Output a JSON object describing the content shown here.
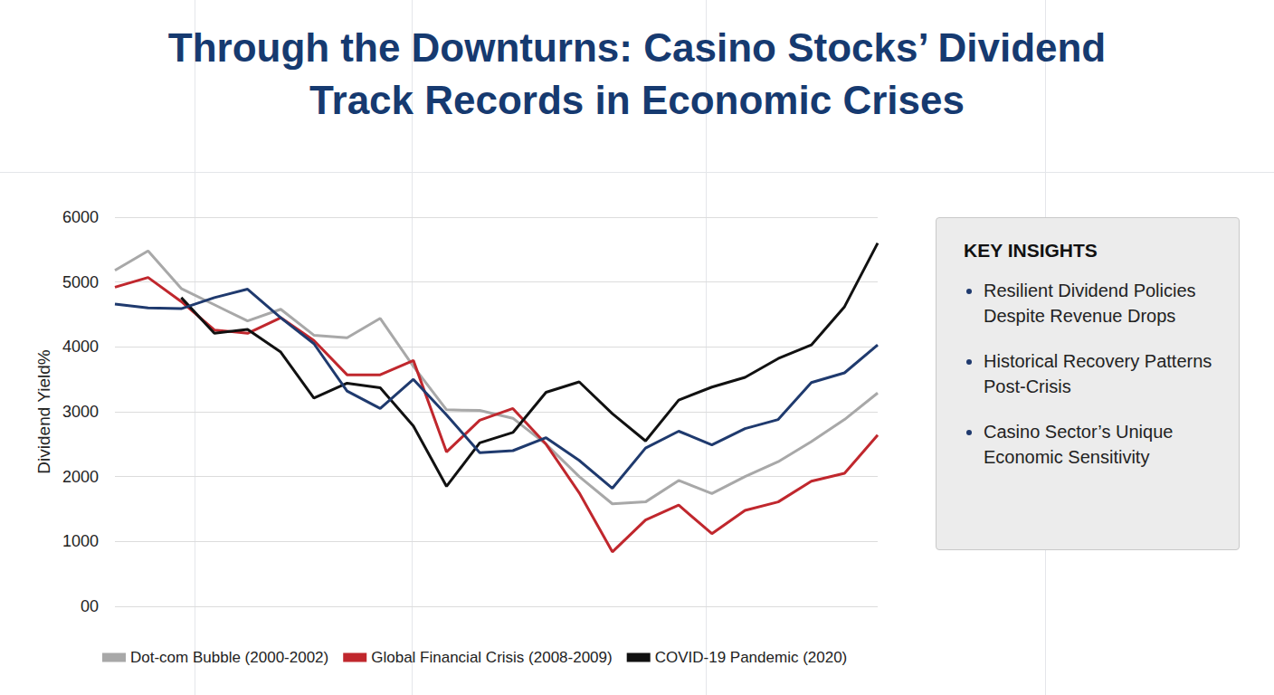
{
  "chart_data": {
    "type": "line",
    "title": "Through the Downturns: Casino Stocks’ Dividend Track Records in Economic Crises",
    "y_label": "Dividend Yield%",
    "categories": [
      null,
      null,
      null,
      null,
      null,
      null,
      null,
      null,
      null,
      null,
      null,
      null,
      null,
      null,
      null,
      null,
      null,
      null,
      null,
      null,
      null,
      null,
      null,
      null
    ],
    "series": [
      {
        "name": "Dot-com Bubble (2000-2002)",
        "color": "#a8a8a8",
        "values": [
          5180,
          5480,
          4900,
          4650,
          4400,
          4580,
          4180,
          4140,
          4440,
          3700,
          3030,
          3020,
          2900,
          2500,
          2000,
          1580,
          1610,
          1940,
          1740,
          2000,
          2230,
          2540,
          2880,
          3290
        ]
      },
      {
        "name": "Global Financial Crisis (2008-2009)",
        "color": "#c0272d",
        "values": [
          4920,
          5070,
          4700,
          4260,
          4210,
          4450,
          4100,
          3570,
          3570,
          3790,
          2380,
          2870,
          3050,
          2500,
          1750,
          840,
          1330,
          1560,
          1120,
          1480,
          1610,
          1930,
          2050,
          2640
        ]
      },
      {
        "name": "COVID-19 Pandemic (2020)",
        "color": "#111111",
        "values": [
          null,
          null,
          4760,
          4210,
          4270,
          3920,
          3210,
          3440,
          3370,
          2780,
          1850,
          2520,
          2680,
          3300,
          3460,
          2970,
          2550,
          3180,
          3380,
          3530,
          3820,
          4030,
          4620,
          5600
        ]
      },
      {
        "name": null,
        "color": "#1f3a6e",
        "values": [
          4660,
          4600,
          4590,
          4760,
          4890,
          4450,
          4050,
          3320,
          3050,
          3500,
          2950,
          2370,
          2400,
          2600,
          2250,
          1820,
          2440,
          2700,
          2490,
          2740,
          2880,
          3450,
          3600,
          4030
        ]
      }
    ],
    "ylim": [
      0,
      6000
    ],
    "yticks": [
      {
        "value": 0,
        "label": "00"
      },
      1000,
      2000,
      3000,
      4000,
      5000,
      6000
    ],
    "grid": true,
    "legend": "bottom",
    "tick_labels": "y",
    "annotations": {
      "title": "KEY INSIGHTS",
      "items": [
        "Resilient Dividend Policies Despite Revenue Drops",
        "Historical Recovery Patterns Post-Crisis",
        "Casino Sector’s Unique Economic Sensitivity"
      ]
    }
  }
}
